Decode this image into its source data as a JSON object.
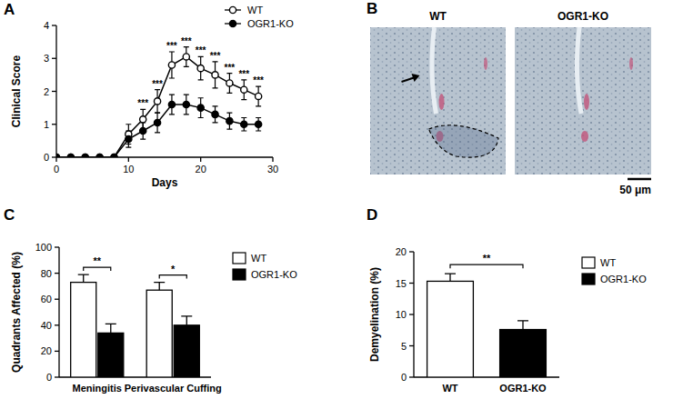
{
  "chart_data": [
    {
      "type": "line",
      "title": "A",
      "x": [
        0,
        2,
        4,
        6,
        8,
        10,
        12,
        14,
        16,
        18,
        20,
        22,
        24,
        26,
        28
      ],
      "xlim": [
        0,
        30
      ],
      "xticks": [
        0,
        10,
        20,
        30
      ],
      "ylim": [
        0,
        4
      ],
      "yticks": [
        0,
        1,
        2,
        3,
        4
      ],
      "x_label": "Days",
      "y_label": "Clinical Score",
      "legend": "upper right",
      "series": [
        {
          "name": "WT",
          "color": "#000000",
          "marker": "open_circle",
          "values": [
            0,
            0,
            0,
            0,
            0,
            0.7,
            1.15,
            1.7,
            2.8,
            3.05,
            2.7,
            2.5,
            2.25,
            2.05,
            1.85
          ],
          "errors": [
            0,
            0,
            0,
            0,
            0,
            0.3,
            0.3,
            0.35,
            0.4,
            0.3,
            0.35,
            0.4,
            0.3,
            0.3,
            0.3
          ]
        },
        {
          "name": "OGR1-KO",
          "color": "#000000",
          "marker": "filled_circle",
          "values": [
            0,
            0,
            0,
            0,
            0,
            0.55,
            0.8,
            1.05,
            1.6,
            1.6,
            1.5,
            1.3,
            1.1,
            1.0,
            1.0
          ],
          "errors": [
            0,
            0,
            0,
            0,
            0,
            0.25,
            0.25,
            0.3,
            0.3,
            0.3,
            0.3,
            0.25,
            0.25,
            0.2,
            0.2
          ]
        }
      ],
      "significance": [
        null,
        null,
        null,
        null,
        null,
        null,
        "***",
        "***",
        "***",
        "***",
        "***",
        "***",
        "***",
        "***",
        "***"
      ]
    },
    {
      "type": "bar",
      "title": "C",
      "categories": [
        "Meningitis",
        "Perivascular Cuffing"
      ],
      "ylim": [
        0,
        100
      ],
      "yticks": [
        0,
        20,
        40,
        60,
        80,
        100
      ],
      "y_label": "Quadrants Affected (%)",
      "legend": "right",
      "series": [
        {
          "name": "WT",
          "color": "#ffffff",
          "values": [
            73,
            67
          ],
          "errors": [
            6,
            6
          ]
        },
        {
          "name": "OGR1-KO",
          "color": "#000000",
          "values": [
            34,
            40
          ],
          "errors": [
            7,
            7
          ]
        }
      ],
      "significance": [
        "**",
        "*"
      ]
    },
    {
      "type": "bar",
      "title": "D",
      "categories": [
        "WT",
        "OGR1-KO"
      ],
      "ylim": [
        0,
        20
      ],
      "yticks": [
        0,
        5,
        10,
        15,
        20
      ],
      "y_label": "Demyelination (%)",
      "legend": "right",
      "series": [
        {
          "name": "WT",
          "color": "#ffffff",
          "values": [
            15.3,
            null
          ],
          "errors": [
            1.2,
            null
          ]
        },
        {
          "name": "OGR1-KO",
          "color": "#000000",
          "values": [
            null,
            7.6
          ],
          "errors": [
            null,
            1.4
          ]
        }
      ],
      "significance": "**"
    }
  ],
  "image_panel": {
    "title": "B",
    "images": [
      {
        "label": "WT"
      },
      {
        "label": "OGR1-KO"
      }
    ],
    "scale_bar": "50 μm"
  }
}
